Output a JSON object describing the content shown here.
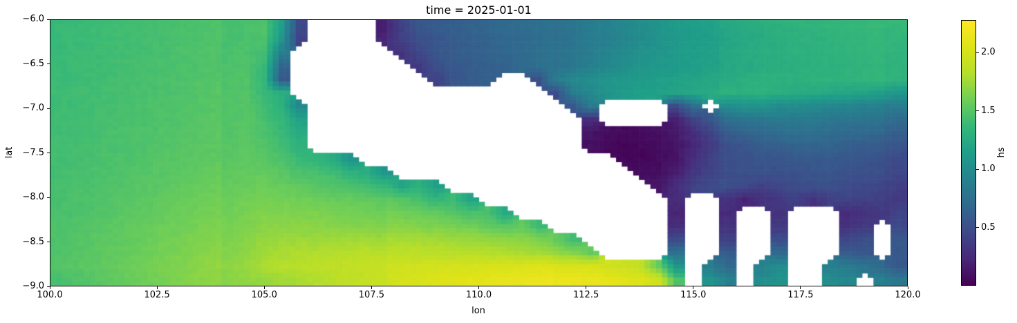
{
  "chart_data": {
    "type": "heatmap",
    "title": "time = 2025-01-01",
    "xlabel": "lon",
    "ylabel": "lat",
    "xlim": [
      100.0,
      120.0
    ],
    "ylim": [
      -9.0,
      -6.0
    ],
    "x_ticks": {
      "values": [
        100.0,
        102.5,
        105.0,
        107.5,
        110.0,
        112.5,
        115.0,
        117.5,
        120.0
      ],
      "labels": [
        "100.0",
        "102.5",
        "105.0",
        "107.5",
        "110.0",
        "112.5",
        "115.0",
        "117.5",
        "120.0"
      ]
    },
    "y_ticks": {
      "values": [
        -6.0,
        -6.5,
        -7.0,
        -7.5,
        -8.0,
        -8.5,
        -9.0
      ],
      "labels": [
        "−6.0",
        "−6.5",
        "−7.0",
        "−7.5",
        "−8.0",
        "−8.5",
        "−9.0"
      ]
    },
    "colorbar": {
      "label": "hs",
      "vmin": 0.0,
      "vmax": 2.28,
      "ticks": {
        "values": [
          0.5,
          1.0,
          1.5,
          2.0
        ],
        "labels": [
          "0.5",
          "1.0",
          "1.5",
          "2.0"
        ]
      },
      "colormap": "viridis",
      "colormap_stops": [
        "#440154",
        "#482878",
        "#3e4989",
        "#31688e",
        "#26828e",
        "#1f9e89",
        "#35b779",
        "#6ece58",
        "#b5de2b",
        "#dde318",
        "#fde725"
      ]
    },
    "land_color": "#ffffff",
    "grid": {
      "comment": "hs values on lon/lat grid; null = land (white). Rows top (lat -6) to bottom (lat -9), cols lon 100 to 120.",
      "ncols": 50,
      "nrows": 20,
      "lon_start": 100.0,
      "lon_end": 120.0,
      "lat_start": -6.0,
      "lat_end": -9.0,
      "values": [
        [
          1.38,
          1.39,
          1.4,
          1.41,
          1.42,
          1.43,
          1.44,
          1.45,
          1.46,
          1.47,
          1.48,
          1.49,
          1.5,
          1.2,
          0.5,
          null,
          null,
          null,
          null,
          0.2,
          0.4,
          0.55,
          0.6,
          0.62,
          0.65,
          0.68,
          0.7,
          0.72,
          0.75,
          0.8,
          0.85,
          0.9,
          0.95,
          1.0,
          1.05,
          1.1,
          1.15,
          1.18,
          1.2,
          1.22,
          1.25,
          1.28,
          1.3,
          1.32,
          1.33,
          1.35,
          1.36,
          1.37,
          1.38,
          1.4
        ],
        [
          1.38,
          1.39,
          1.4,
          1.41,
          1.42,
          1.43,
          1.44,
          1.45,
          1.46,
          1.47,
          1.48,
          1.49,
          1.5,
          1.1,
          0.45,
          null,
          null,
          null,
          null,
          0.25,
          0.4,
          0.5,
          0.55,
          0.6,
          0.62,
          0.65,
          0.68,
          0.7,
          0.72,
          0.78,
          0.82,
          0.88,
          0.92,
          0.98,
          1.02,
          1.08,
          1.12,
          1.15,
          1.18,
          1.2,
          1.22,
          1.25,
          1.28,
          1.3,
          1.3,
          1.32,
          1.33,
          1.35,
          1.36,
          1.38
        ],
        [
          1.38,
          1.39,
          1.4,
          1.41,
          1.42,
          1.43,
          1.44,
          1.46,
          1.47,
          1.48,
          1.49,
          1.5,
          1.45,
          0.9,
          null,
          null,
          null,
          null,
          null,
          null,
          0.3,
          0.45,
          0.55,
          0.6,
          0.62,
          0.65,
          0.68,
          0.7,
          0.75,
          0.8,
          0.85,
          0.9,
          0.98,
          1.02,
          1.08,
          1.1,
          1.15,
          1.18,
          1.2,
          1.22,
          1.25,
          1.28,
          1.28,
          1.3,
          1.3,
          1.32,
          1.33,
          1.35,
          1.35,
          1.36
        ],
        [
          1.39,
          1.4,
          1.41,
          1.42,
          1.43,
          1.44,
          1.45,
          1.46,
          1.47,
          1.48,
          1.5,
          1.51,
          1.42,
          0.7,
          null,
          null,
          null,
          null,
          null,
          null,
          null,
          0.35,
          0.5,
          0.58,
          0.6,
          0.62,
          0.65,
          0.7,
          0.75,
          0.8,
          0.85,
          0.92,
          0.98,
          1.05,
          1.1,
          1.12,
          1.15,
          1.18,
          1.2,
          1.22,
          1.24,
          1.26,
          1.28,
          1.28,
          1.3,
          1.3,
          1.32,
          1.33,
          1.34,
          1.35
        ],
        [
          1.39,
          1.4,
          1.41,
          1.42,
          1.43,
          1.44,
          1.45,
          1.46,
          1.48,
          1.49,
          1.5,
          1.52,
          1.38,
          0.6,
          null,
          null,
          null,
          null,
          null,
          null,
          null,
          null,
          0.4,
          0.55,
          0.6,
          0.62,
          null,
          null,
          0.5,
          0.9,
          1.0,
          1.05,
          1.1,
          1.12,
          1.15,
          1.18,
          1.2,
          1.22,
          1.25,
          1.25,
          1.28,
          1.3,
          1.3,
          1.3,
          1.32,
          1.32,
          1.33,
          1.34,
          1.35,
          1.36
        ],
        [
          1.4,
          1.41,
          1.42,
          1.43,
          1.44,
          1.45,
          1.46,
          1.47,
          1.48,
          1.5,
          1.51,
          1.52,
          1.42,
          1.3,
          null,
          null,
          null,
          null,
          null,
          null,
          null,
          null,
          null,
          null,
          null,
          null,
          null,
          null,
          null,
          0.5,
          0.9,
          1.0,
          1.1,
          1.15,
          1.18,
          1.2,
          1.22,
          1.25,
          1.28,
          1.3,
          1.3,
          1.3,
          1.28,
          1.26,
          1.25,
          1.22,
          1.2,
          1.18,
          1.15,
          1.12
        ],
        [
          1.4,
          1.41,
          1.42,
          1.43,
          1.45,
          1.46,
          1.47,
          1.48,
          1.49,
          1.5,
          1.52,
          1.53,
          1.45,
          1.35,
          1.0,
          null,
          null,
          null,
          null,
          null,
          null,
          null,
          null,
          null,
          null,
          null,
          null,
          null,
          null,
          null,
          0.6,
          0.9,
          null,
          null,
          null,
          null,
          0.5,
          0.8,
          null,
          1.0,
          1.05,
          1.05,
          1.0,
          1.0,
          0.98,
          0.95,
          0.95,
          0.92,
          0.9,
          0.9
        ],
        [
          1.41,
          1.42,
          1.43,
          1.44,
          1.45,
          1.46,
          1.47,
          1.48,
          1.5,
          1.51,
          1.52,
          1.54,
          1.48,
          1.4,
          1.2,
          null,
          null,
          null,
          null,
          null,
          null,
          null,
          null,
          null,
          null,
          null,
          null,
          null,
          null,
          null,
          null,
          0.3,
          null,
          null,
          null,
          null,
          0.2,
          0.45,
          0.6,
          0.75,
          0.8,
          0.82,
          0.85,
          0.85,
          0.85,
          0.82,
          0.8,
          0.8,
          0.78,
          0.75
        ],
        [
          1.41,
          1.42,
          1.43,
          1.45,
          1.46,
          1.47,
          1.48,
          1.49,
          1.5,
          1.52,
          1.53,
          1.55,
          1.5,
          1.42,
          1.3,
          null,
          null,
          null,
          null,
          null,
          null,
          null,
          null,
          null,
          null,
          null,
          null,
          null,
          null,
          null,
          null,
          0.15,
          0.1,
          0.08,
          0.1,
          0.12,
          0.18,
          0.3,
          0.45,
          0.6,
          0.65,
          0.7,
          0.72,
          0.75,
          0.75,
          0.72,
          0.7,
          0.7,
          0.68,
          0.65
        ],
        [
          1.42,
          1.43,
          1.44,
          1.45,
          1.46,
          1.47,
          1.49,
          1.5,
          1.51,
          1.53,
          1.54,
          1.56,
          1.52,
          1.45,
          1.35,
          null,
          null,
          null,
          null,
          null,
          null,
          null,
          null,
          null,
          null,
          null,
          null,
          null,
          null,
          null,
          null,
          0.12,
          0.08,
          0.06,
          0.08,
          0.1,
          0.15,
          0.25,
          0.4,
          0.5,
          0.55,
          0.6,
          0.62,
          0.65,
          0.65,
          0.65,
          0.62,
          0.6,
          0.6,
          0.58
        ],
        [
          1.42,
          1.43,
          1.44,
          1.46,
          1.47,
          1.48,
          1.5,
          1.51,
          1.52,
          1.54,
          1.55,
          1.57,
          1.55,
          1.5,
          1.42,
          1.38,
          1.3,
          1.1,
          null,
          null,
          null,
          null,
          null,
          null,
          null,
          null,
          null,
          null,
          null,
          null,
          null,
          null,
          null,
          0.08,
          0.06,
          0.1,
          0.15,
          0.3,
          0.45,
          0.5,
          0.52,
          0.55,
          0.55,
          0.58,
          0.58,
          0.58,
          0.55,
          0.55,
          0.52,
          0.5
        ],
        [
          1.43,
          1.44,
          1.45,
          1.47,
          1.48,
          1.5,
          1.51,
          1.53,
          1.54,
          1.56,
          1.57,
          1.59,
          1.58,
          1.55,
          1.5,
          1.48,
          1.45,
          1.35,
          1.3,
          1.1,
          null,
          null,
          null,
          null,
          null,
          null,
          null,
          null,
          null,
          null,
          null,
          null,
          null,
          null,
          0.1,
          0.12,
          0.2,
          0.35,
          0.45,
          0.5,
          0.5,
          0.52,
          0.5,
          0.52,
          0.55,
          0.55,
          0.52,
          0.5,
          0.5,
          0.48
        ],
        [
          1.44,
          1.45,
          1.46,
          1.48,
          1.49,
          1.51,
          1.52,
          1.54,
          1.56,
          1.58,
          1.59,
          1.61,
          1.62,
          1.6,
          1.58,
          1.55,
          1.52,
          1.5,
          1.45,
          1.4,
          1.2,
          1.3,
          1.15,
          null,
          null,
          null,
          null,
          null,
          null,
          null,
          null,
          null,
          null,
          null,
          null,
          0.15,
          0.3,
          0.45,
          0.5,
          0.5,
          0.45,
          0.4,
          0.45,
          0.48,
          0.5,
          0.5,
          0.48,
          0.45,
          0.45,
          0.42
        ],
        [
          1.44,
          1.46,
          1.47,
          1.49,
          1.5,
          1.52,
          1.54,
          1.56,
          1.58,
          1.6,
          1.62,
          1.64,
          1.66,
          1.65,
          1.64,
          1.62,
          1.6,
          1.6,
          1.58,
          1.55,
          1.5,
          1.45,
          1.35,
          1.4,
          1.2,
          null,
          null,
          null,
          null,
          null,
          null,
          null,
          null,
          null,
          null,
          null,
          0.3,
          null,
          null,
          0.3,
          0.2,
          0.3,
          0.35,
          0.4,
          0.3,
          0.4,
          0.42,
          0.4,
          0.4,
          0.38
        ],
        [
          1.45,
          1.47,
          1.48,
          1.5,
          1.52,
          1.54,
          1.56,
          1.58,
          1.6,
          1.62,
          1.64,
          1.66,
          1.7,
          1.69,
          1.68,
          1.68,
          1.66,
          1.65,
          1.64,
          1.62,
          1.6,
          1.58,
          1.55,
          1.5,
          1.45,
          1.45,
          1.25,
          null,
          null,
          null,
          null,
          null,
          null,
          null,
          null,
          null,
          0.25,
          null,
          null,
          0.25,
          null,
          null,
          0.3,
          null,
          null,
          null,
          0.25,
          0.3,
          0.35,
          0.45
        ],
        [
          1.46,
          1.48,
          1.5,
          1.52,
          1.54,
          1.56,
          1.58,
          1.6,
          1.62,
          1.64,
          1.66,
          1.68,
          1.72,
          1.72,
          1.72,
          1.72,
          1.71,
          1.7,
          1.7,
          1.69,
          1.68,
          1.66,
          1.64,
          1.62,
          1.6,
          1.55,
          1.5,
          1.55,
          1.4,
          null,
          null,
          null,
          null,
          null,
          null,
          null,
          0.3,
          null,
          null,
          0.3,
          null,
          null,
          0.35,
          null,
          null,
          null,
          0.3,
          0.35,
          null,
          0.5
        ],
        [
          1.47,
          1.49,
          1.51,
          1.53,
          1.55,
          1.57,
          1.6,
          1.62,
          1.64,
          1.66,
          1.68,
          1.71,
          1.76,
          1.77,
          1.78,
          1.78,
          1.79,
          1.79,
          1.79,
          1.78,
          1.78,
          1.77,
          1.76,
          1.75,
          1.74,
          1.72,
          1.7,
          1.68,
          1.65,
          1.6,
          1.45,
          null,
          null,
          null,
          null,
          null,
          0.5,
          null,
          null,
          0.4,
          null,
          null,
          0.5,
          null,
          null,
          null,
          0.45,
          0.5,
          null,
          0.6
        ],
        [
          1.48,
          1.5,
          1.52,
          1.54,
          1.56,
          1.59,
          1.61,
          1.64,
          1.66,
          1.69,
          1.71,
          1.74,
          1.8,
          1.82,
          1.84,
          1.85,
          1.86,
          1.87,
          1.88,
          1.88,
          1.87,
          1.86,
          1.86,
          1.85,
          1.84,
          1.83,
          1.81,
          1.79,
          1.77,
          1.74,
          1.7,
          1.6,
          null,
          null,
          null,
          null,
          0.8,
          null,
          null,
          0.6,
          null,
          null,
          0.7,
          null,
          null,
          null,
          0.6,
          0.55,
          null,
          0.6
        ],
        [
          1.49,
          1.51,
          1.53,
          1.55,
          1.58,
          1.6,
          1.63,
          1.65,
          1.68,
          1.71,
          1.73,
          1.76,
          1.84,
          1.86,
          1.88,
          1.9,
          1.92,
          1.93,
          1.95,
          1.96,
          1.97,
          1.98,
          1.99,
          2.0,
          2.01,
          2.02,
          2.03,
          2.04,
          2.05,
          2.06,
          2.06,
          2.05,
          2.02,
          1.98,
          1.9,
          1.6,
          1.1,
          null,
          0.9,
          0.7,
          null,
          0.9,
          1.0,
          null,
          null,
          0.9,
          0.85,
          0.8,
          0.7,
          0.6
        ],
        [
          1.44,
          1.47,
          1.5,
          1.53,
          1.56,
          1.59,
          1.62,
          1.65,
          1.68,
          1.7,
          1.72,
          1.74,
          1.76,
          1.79,
          1.82,
          1.85,
          1.88,
          1.91,
          1.94,
          1.97,
          2.0,
          2.02,
          2.04,
          2.06,
          2.08,
          2.1,
          2.12,
          2.14,
          2.16,
          2.17,
          2.18,
          2.17,
          2.15,
          2.12,
          2.08,
          2.0,
          1.5,
          null,
          1.1,
          0.9,
          null,
          1.0,
          1.05,
          null,
          null,
          1.0,
          0.95,
          null,
          0.9,
          0.85
        ]
      ]
    }
  }
}
